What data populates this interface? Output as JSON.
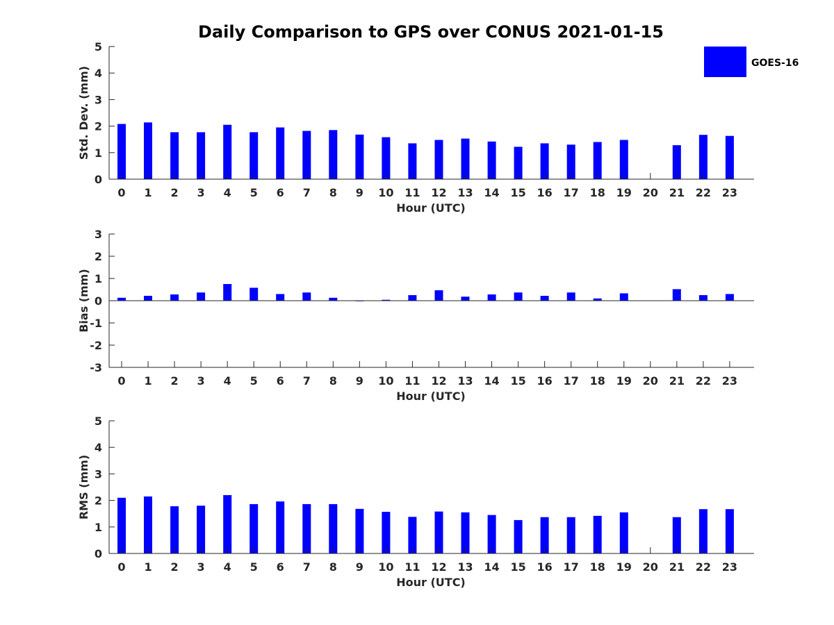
{
  "chart_data": {
    "title": "Daily Comparison to GPS over CONUS 2021-01-15",
    "legend": {
      "label": "GOES-16",
      "color": "#0000ff",
      "position": "top-right"
    },
    "bar_color": "#0000ff",
    "panels": [
      {
        "type": "bar",
        "xlabel": "Hour (UTC)",
        "ylabel": "Std. Dev. (mm)",
        "ylim": [
          0,
          5
        ],
        "yticks": [
          "0",
          "1",
          "2",
          "3",
          "4",
          "5"
        ],
        "categories": [
          "0",
          "1",
          "2",
          "3",
          "4",
          "5",
          "6",
          "7",
          "8",
          "9",
          "10",
          "11",
          "12",
          "13",
          "14",
          "15",
          "16",
          "17",
          "18",
          "19",
          "20",
          "21",
          "22",
          "23"
        ],
        "values": [
          2.08,
          2.14,
          1.77,
          1.77,
          2.05,
          1.77,
          1.95,
          1.82,
          1.85,
          1.68,
          1.58,
          1.35,
          1.48,
          1.53,
          1.42,
          1.22,
          1.35,
          1.3,
          1.4,
          1.48,
          null,
          1.28,
          1.67,
          1.63
        ]
      },
      {
        "type": "bar",
        "xlabel": "Hour (UTC)",
        "ylabel": "Bias (mm)",
        "ylim": [
          -3,
          3
        ],
        "yticks": [
          "-3",
          "-2",
          "-1",
          "0",
          "1",
          "2",
          "3"
        ],
        "categories": [
          "0",
          "1",
          "2",
          "3",
          "4",
          "5",
          "6",
          "7",
          "8",
          "9",
          "10",
          "11",
          "12",
          "13",
          "14",
          "15",
          "16",
          "17",
          "18",
          "19",
          "20",
          "21",
          "22",
          "23"
        ],
        "values": [
          0.13,
          0.22,
          0.28,
          0.37,
          0.75,
          0.58,
          0.3,
          0.37,
          0.13,
          -0.01,
          0.04,
          0.25,
          0.47,
          0.18,
          0.28,
          0.37,
          0.22,
          0.37,
          0.1,
          0.33,
          null,
          0.52,
          0.25,
          0.3
        ]
      },
      {
        "type": "bar",
        "xlabel": "Hour (UTC)",
        "ylabel": "RMS (mm)",
        "ylim": [
          0,
          5
        ],
        "yticks": [
          "0",
          "1",
          "2",
          "3",
          "4",
          "5"
        ],
        "categories": [
          "0",
          "1",
          "2",
          "3",
          "4",
          "5",
          "6",
          "7",
          "8",
          "9",
          "10",
          "11",
          "12",
          "13",
          "14",
          "15",
          "16",
          "17",
          "18",
          "19",
          "20",
          "21",
          "22",
          "23"
        ],
        "values": [
          2.1,
          2.15,
          1.78,
          1.8,
          2.2,
          1.86,
          1.96,
          1.86,
          1.86,
          1.68,
          1.57,
          1.38,
          1.58,
          1.55,
          1.45,
          1.26,
          1.37,
          1.37,
          1.42,
          1.55,
          null,
          1.37,
          1.67,
          1.67
        ]
      }
    ]
  }
}
